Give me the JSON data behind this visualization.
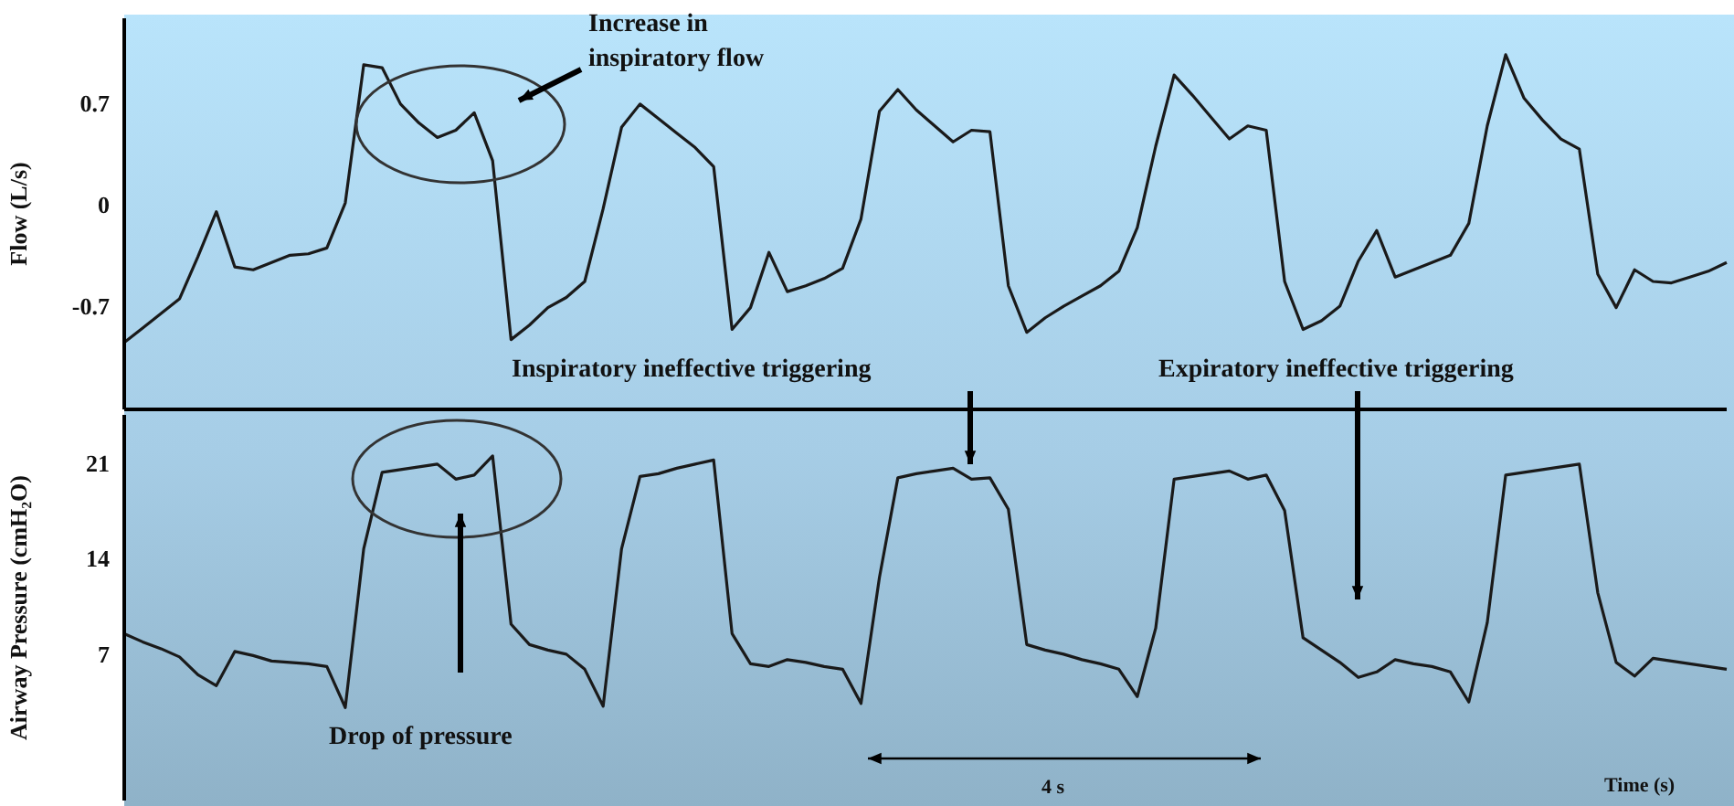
{
  "chart_data": [
    {
      "type": "line",
      "ylabel": "Flow (L/s)",
      "ylim": [
        -1.41,
        1.28
      ],
      "yticks": [
        -0.7,
        0,
        0.7
      ],
      "tick_labels": "y",
      "color": "#1a1a1a",
      "categories": [
        null,
        null,
        null,
        null,
        null,
        null,
        null,
        null,
        null,
        null,
        null,
        null,
        null,
        null,
        null,
        null,
        null,
        null,
        null,
        null,
        null,
        null,
        null,
        null,
        null,
        null,
        null,
        null,
        null,
        null,
        null,
        null,
        null,
        null,
        null,
        null,
        null,
        null,
        null,
        null,
        null,
        null,
        null,
        null,
        null,
        null,
        null,
        null,
        null,
        null,
        null,
        null,
        null,
        null,
        null,
        null,
        null,
        null,
        null,
        null,
        null,
        null,
        null,
        null,
        null,
        null,
        null,
        null,
        null,
        null,
        null,
        null,
        null,
        null,
        null,
        null,
        null,
        null,
        null,
        null,
        null,
        null,
        null,
        null,
        null,
        null,
        null,
        null
      ],
      "values": [
        -0.95,
        -0.85,
        -0.75,
        -0.65,
        -0.36,
        -0.05,
        -0.43,
        -0.45,
        -0.4,
        -0.35,
        -0.34,
        -0.3,
        0.01,
        0.96,
        0.94,
        0.69,
        0.56,
        0.46,
        0.51,
        0.63,
        0.3,
        -0.93,
        -0.83,
        -0.71,
        -0.64,
        -0.53,
        -0.03,
        0.53,
        0.69,
        0.59,
        0.49,
        0.39,
        0.26,
        -0.86,
        -0.71,
        -0.33,
        -0.6,
        -0.56,
        -0.51,
        -0.44,
        -0.1,
        0.64,
        0.79,
        0.65,
        0.54,
        0.43,
        0.51,
        0.5,
        -0.56,
        -0.88,
        -0.78,
        -0.7,
        -0.63,
        -0.56,
        -0.46,
        -0.16,
        0.4,
        0.89,
        0.75,
        0.6,
        0.45,
        0.54,
        0.51,
        -0.53,
        -0.86,
        -0.8,
        -0.7,
        -0.39,
        -0.18,
        -0.5,
        -0.45,
        -0.4,
        -0.35,
        -0.13,
        0.54,
        1.03,
        0.73,
        0.58,
        0.45,
        0.38,
        -0.48,
        -0.71,
        -0.45,
        -0.53,
        -0.54,
        -0.5,
        -0.46,
        -0.4
      ],
      "annotations": [
        "Increase in inspiratory flow"
      ]
    },
    {
      "type": "line",
      "ylabel": "Airway Pressure (cmH₂O)",
      "xlabel": "Time (s)",
      "ylim": [
        -3.7,
        24.5
      ],
      "yticks": [
        7,
        14,
        21
      ],
      "tick_labels": "y",
      "color": "#1a1a1a",
      "categories": [
        null,
        null,
        null,
        null,
        null,
        null,
        null,
        null,
        null,
        null,
        null,
        null,
        null,
        null,
        null,
        null,
        null,
        null,
        null,
        null,
        null,
        null,
        null,
        null,
        null,
        null,
        null,
        null,
        null,
        null,
        null,
        null,
        null,
        null,
        null,
        null,
        null,
        null,
        null,
        null,
        null,
        null,
        null,
        null,
        null,
        null,
        null,
        null,
        null,
        null,
        null,
        null,
        null,
        null,
        null,
        null,
        null,
        null,
        null,
        null,
        null,
        null,
        null,
        null,
        null,
        null,
        null,
        null,
        null,
        null,
        null,
        null,
        null,
        null,
        null,
        null,
        null,
        null,
        null,
        null,
        null,
        null,
        null,
        null,
        null,
        null,
        null,
        null
      ],
      "values": [
        8.5,
        7.9,
        7.4,
        6.8,
        5.5,
        4.7,
        7.2,
        6.9,
        6.5,
        6.4,
        6.3,
        6.1,
        3.1,
        14.7,
        20.3,
        20.5,
        20.7,
        20.9,
        19.8,
        20.1,
        21.5,
        9.2,
        7.7,
        7.3,
        7.0,
        5.9,
        3.2,
        14.7,
        20.0,
        20.2,
        20.6,
        20.9,
        21.2,
        8.5,
        6.3,
        6.1,
        6.6,
        6.4,
        6.1,
        5.9,
        3.4,
        12.6,
        19.9,
        20.2,
        20.4,
        20.6,
        19.8,
        19.9,
        17.6,
        7.7,
        7.3,
        7.0,
        6.6,
        6.3,
        5.9,
        3.9,
        8.9,
        19.8,
        20.0,
        20.2,
        20.4,
        19.8,
        20.1,
        17.5,
        8.2,
        7.3,
        6.4,
        5.3,
        5.7,
        6.6,
        6.3,
        6.1,
        5.7,
        3.5,
        9.3,
        20.1,
        20.3,
        20.5,
        20.7,
        20.9,
        11.5,
        6.4,
        5.4,
        6.7,
        6.5,
        6.3,
        6.1,
        5.9
      ],
      "annotations": [
        "Drop of pressure",
        "Inspiratory ineffective triggering",
        "Expiratory ineffective triggering",
        "4 s"
      ]
    }
  ]
}
